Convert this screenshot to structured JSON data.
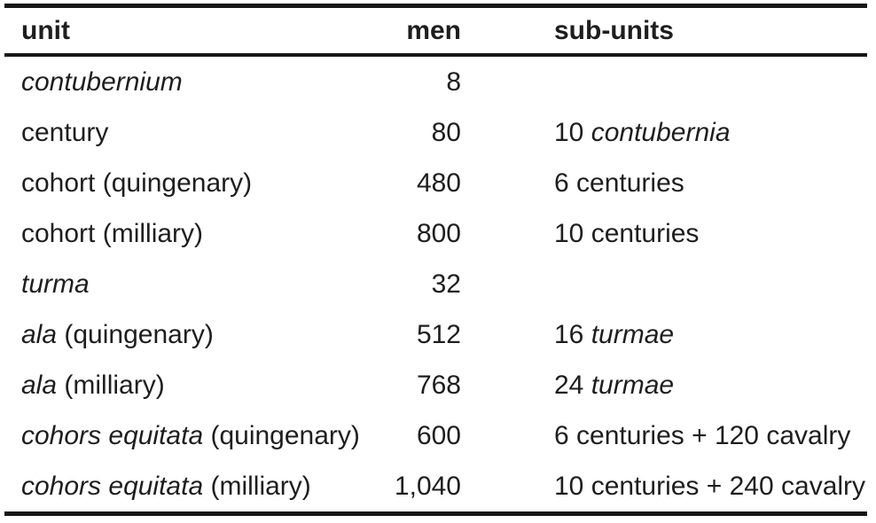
{
  "table": {
    "columns": [
      {
        "key": "unit",
        "label": "unit",
        "align": "left"
      },
      {
        "key": "men",
        "label": "men",
        "align": "right"
      },
      {
        "key": "sub_units",
        "label": "sub-units",
        "align": "left"
      }
    ],
    "rows": [
      {
        "unit": [
          {
            "text": "contubernium",
            "italic": true
          }
        ],
        "men": "8",
        "sub_units": []
      },
      {
        "unit": [
          {
            "text": "century",
            "italic": false
          }
        ],
        "men": "80",
        "sub_units": [
          {
            "text": "10 ",
            "italic": false
          },
          {
            "text": "contubernia",
            "italic": true
          }
        ]
      },
      {
        "unit": [
          {
            "text": "cohort (quingenary)",
            "italic": false
          }
        ],
        "men": "480",
        "sub_units": [
          {
            "text": "6 centuries",
            "italic": false
          }
        ]
      },
      {
        "unit": [
          {
            "text": "cohort (milliary)",
            "italic": false
          }
        ],
        "men": "800",
        "sub_units": [
          {
            "text": "10 centuries",
            "italic": false
          }
        ]
      },
      {
        "unit": [
          {
            "text": "turma",
            "italic": true
          }
        ],
        "men": "32",
        "sub_units": []
      },
      {
        "unit": [
          {
            "text": "ala",
            "italic": true
          },
          {
            "text": " (quingenary)",
            "italic": false
          }
        ],
        "men": "512",
        "sub_units": [
          {
            "text": "16 ",
            "italic": false
          },
          {
            "text": "turmae",
            "italic": true
          }
        ]
      },
      {
        "unit": [
          {
            "text": "ala",
            "italic": true
          },
          {
            "text": " (milliary)",
            "italic": false
          }
        ],
        "men": "768",
        "sub_units": [
          {
            "text": "24 ",
            "italic": false
          },
          {
            "text": "turmae",
            "italic": true
          }
        ]
      },
      {
        "unit": [
          {
            "text": "cohors equitata",
            "italic": true
          },
          {
            "text": " (quingenary)",
            "italic": false
          }
        ],
        "men": "600",
        "sub_units": [
          {
            "text": "6 centuries + 120 cavalry",
            "italic": false
          }
        ]
      },
      {
        "unit": [
          {
            "text": "cohors equitata",
            "italic": true
          },
          {
            "text": " (milliary)",
            "italic": false
          }
        ],
        "men": "1,040",
        "sub_units": [
          {
            "text": "10 centuries + 240 cavalry",
            "italic": false
          }
        ]
      }
    ]
  },
  "colors": {
    "text": "#1e1e1e",
    "rule": "#161616",
    "background": "#ffffff"
  }
}
